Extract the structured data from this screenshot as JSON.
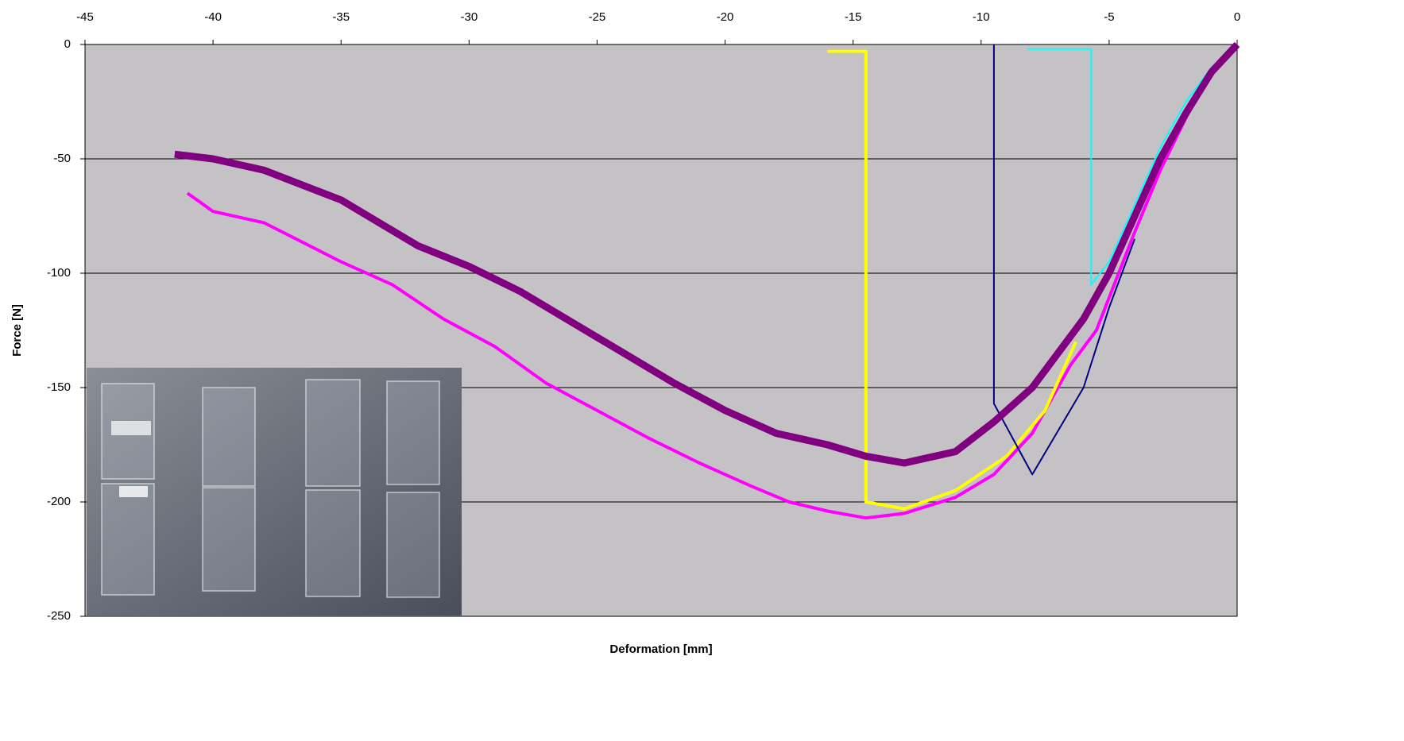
{
  "chart_data": {
    "type": "line",
    "xlabel": "Deformation [mm]",
    "ylabel": "Force [N]",
    "xlim": [
      -45,
      0
    ],
    "xticks": [
      -45,
      -40,
      -35,
      -30,
      -25,
      -20,
      -15,
      -10,
      -5,
      0
    ],
    "ylim": [
      -250,
      0
    ],
    "yticks": [
      0,
      -50,
      -100,
      -150,
      -200,
      -250
    ],
    "grid": true,
    "background": "#c4c2c4",
    "series": [
      {
        "color": "#ff00ff",
        "width": 4,
        "x": [
          -41,
          -40,
          -38,
          -35,
          -33,
          -31,
          -29,
          -27,
          -25,
          -23,
          -21,
          -19,
          -17.5,
          -16,
          -14.5,
          -13,
          -11,
          -9.5,
          -8,
          -6.5,
          -5.5,
          -4,
          -3,
          -2,
          -1,
          0
        ],
        "values": [
          -65,
          -73,
          -78,
          -95,
          -105,
          -120,
          -132,
          -148,
          -160,
          -172,
          -183,
          -193,
          -200,
          -204,
          -207,
          -205,
          -198,
          -188,
          -170,
          -140,
          -125,
          -82,
          -55,
          -32,
          -12,
          0
        ]
      },
      {
        "color": "#ffff00",
        "width": 4,
        "x": [
          -16,
          -14.5,
          -14.5,
          -13,
          -11,
          -9,
          -7.5,
          -6.3
        ],
        "values": [
          -3,
          -3,
          -200,
          -203,
          -195,
          -180,
          -160,
          -130
        ]
      },
      {
        "color": "#000080",
        "width": 2,
        "x": [
          -9.5,
          -9.5,
          -8,
          -6,
          -5,
          -4
        ],
        "values": [
          0,
          -157,
          -188,
          -150,
          -115,
          -85
        ]
      },
      {
        "color": "#00ffff",
        "width": 2,
        "x": [
          -8.2,
          -5.7,
          -5.7,
          -5,
          -4,
          -3,
          -2,
          -1,
          0
        ],
        "values": [
          -2,
          -2,
          -105,
          -95,
          -70,
          -45,
          -25,
          -10,
          0
        ]
      },
      {
        "color": "#800080",
        "width": 9,
        "x": [
          -41.5,
          -40,
          -38,
          -35,
          -32,
          -30,
          -28,
          -25,
          -22,
          -20,
          -18,
          -16,
          -14.5,
          -13,
          -11,
          -9.5,
          -8,
          -6,
          -5,
          -4,
          -3,
          -2,
          -1,
          0
        ],
        "values": [
          -48,
          -50,
          -55,
          -68,
          -88,
          -97,
          -108,
          -128,
          -148,
          -160,
          -170,
          -175,
          -180,
          -183,
          -178,
          -165,
          -150,
          -120,
          -100,
          -75,
          -50,
          -30,
          -12,
          0
        ]
      }
    ]
  }
}
